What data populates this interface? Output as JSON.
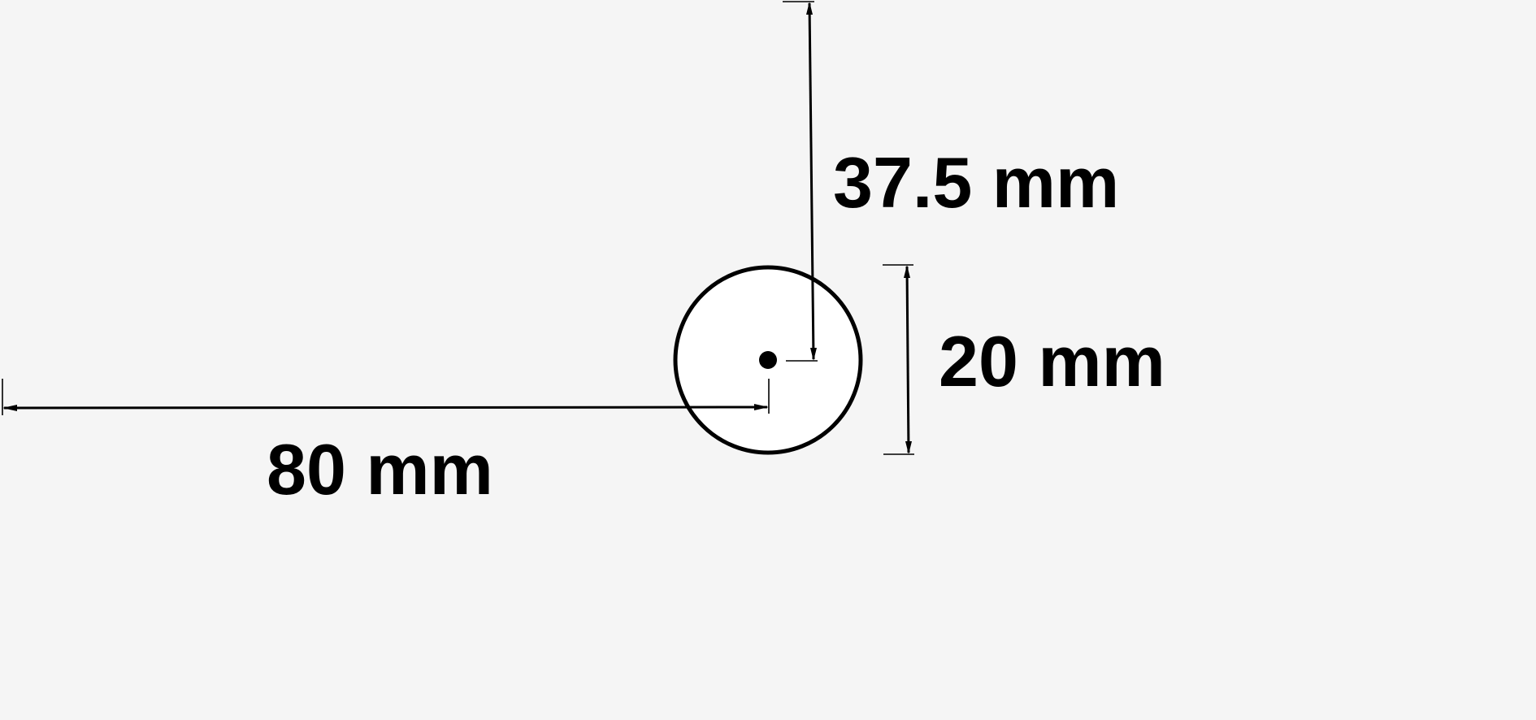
{
  "diagram": {
    "part_outline": "circle",
    "hole_diameter": {
      "label": "20 mm"
    },
    "horizontal_offset": {
      "label": "80 mm"
    },
    "vertical_offset": {
      "label": "37.5 mm"
    }
  },
  "colors": {
    "background": "#f5f5f5",
    "stroke": "#000000",
    "circle_fill": "#ffffff"
  }
}
